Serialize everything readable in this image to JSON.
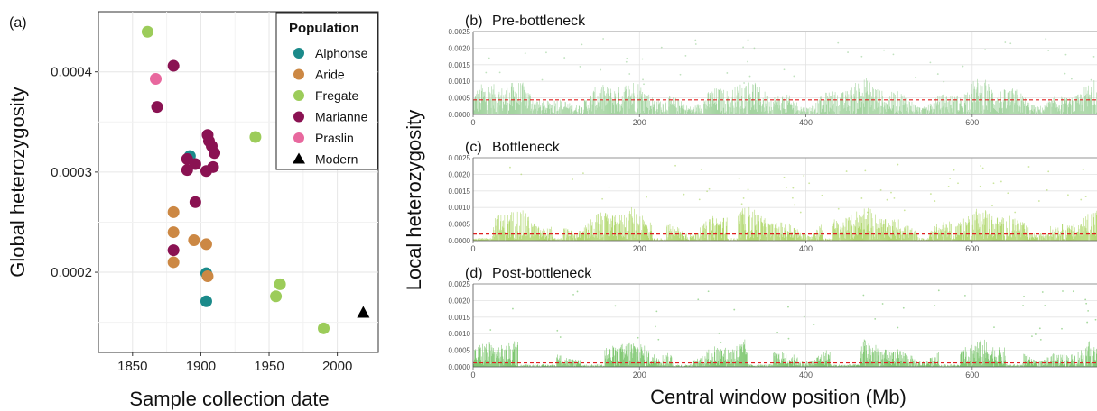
{
  "chart_data": [
    {
      "type": "scatter",
      "panel_label": "(a)",
      "xlabel": "Sample collection date",
      "ylabel": "Global heterozygosity",
      "xlim": [
        1825,
        2030
      ],
      "ylim": [
        0.00012,
        0.00046
      ],
      "xticks": [
        {
          "v": 1850,
          "label": "1850"
        },
        {
          "v": 1900,
          "label": "1900"
        },
        {
          "v": 1950,
          "label": "1950"
        },
        {
          "v": 2000,
          "label": "2000"
        }
      ],
      "yticks": [
        {
          "v": 0.0002,
          "label": "0.0002"
        },
        {
          "v": 0.0003,
          "label": "0.0003"
        },
        {
          "v": 0.0004,
          "label": "0.0004"
        }
      ],
      "grid": true,
      "legend": {
        "title": "Population",
        "position": "top-right",
        "items": [
          {
            "name": "Alphonse",
            "color": "#1b8a8a",
            "shape": "circle"
          },
          {
            "name": "Aride",
            "color": "#cc8844",
            "shape": "circle"
          },
          {
            "name": "Fregate",
            "color": "#9ccc5a",
            "shape": "circle"
          },
          {
            "name": "Marianne",
            "color": "#8a1252",
            "shape": "circle"
          },
          {
            "name": "Praslin",
            "color": "#e8689e",
            "shape": "circle"
          },
          {
            "name": "Modern",
            "color": "#000000",
            "shape": "triangle"
          }
        ]
      },
      "series": [
        {
          "name": "Alphonse",
          "points": [
            [
              1892,
              0.000316
            ],
            [
              1904,
              0.000199
            ],
            [
              1904,
              0.000171
            ]
          ]
        },
        {
          "name": "Aride",
          "points": [
            [
              1880,
              0.00026
            ],
            [
              1880,
              0.00024
            ],
            [
              1880,
              0.00021
            ],
            [
              1895,
              0.000232
            ],
            [
              1904,
              0.000228
            ],
            [
              1905,
              0.000196
            ]
          ]
        },
        {
          "name": "Fregate",
          "points": [
            [
              1861,
              0.00044
            ],
            [
              1940,
              0.000335
            ],
            [
              1958,
              0.000188
            ],
            [
              1955,
              0.000176
            ],
            [
              1990,
              0.000144
            ]
          ]
        },
        {
          "name": "Marianne",
          "points": [
            [
              1880,
              0.000406
            ],
            [
              1868,
              0.000365
            ],
            [
              1890,
              0.000313
            ],
            [
              1896,
              0.000308
            ],
            [
              1890,
              0.000302
            ],
            [
              1905,
              0.000337
            ],
            [
              1906,
              0.000331
            ],
            [
              1908,
              0.000326
            ],
            [
              1910,
              0.000319
            ],
            [
              1909,
              0.000305
            ],
            [
              1904,
              0.000301
            ],
            [
              1896,
              0.00027
            ],
            [
              1880,
              0.000222
            ]
          ]
        },
        {
          "name": "Praslin",
          "points": [
            [
              1867,
              0.000393
            ]
          ]
        },
        {
          "name": "Modern",
          "points": [
            [
              2019,
              0.00016
            ]
          ]
        }
      ]
    },
    {
      "type": "scatter",
      "panel_label": "(b)",
      "title": "Pre-bottleneck",
      "xlim": [
        0,
        750
      ],
      "ylim": [
        0,
        0.0025
      ],
      "xticks": [
        {
          "v": 0,
          "label": "0"
        },
        {
          "v": 200,
          "label": "200"
        },
        {
          "v": 400,
          "label": "400"
        },
        {
          "v": 600,
          "label": "600"
        }
      ],
      "yticks": [
        {
          "v": 0,
          "label": "0.0000"
        },
        {
          "v": 0.0005,
          "label": "0.0005"
        },
        {
          "v": 0.001,
          "label": "0.0010"
        },
        {
          "v": 0.0015,
          "label": "0.0015"
        },
        {
          "v": 0.002,
          "label": "0.0020"
        },
        {
          "v": 0.0025,
          "label": "0.0025"
        }
      ],
      "color": "#98cf94",
      "mean_line": 0.00044,
      "band_upper": 0.0009,
      "low_regions": [],
      "notes": "Dense band of window-level heterozygosity estimates across genome, red dashed line = mean"
    },
    {
      "type": "scatter",
      "panel_label": "(c)",
      "title": "Bottleneck",
      "xlim": [
        0,
        750
      ],
      "ylim": [
        0,
        0.0025
      ],
      "xticks": [
        {
          "v": 0,
          "label": "0"
        },
        {
          "v": 200,
          "label": "200"
        },
        {
          "v": 400,
          "label": "400"
        },
        {
          "v": 600,
          "label": "600"
        }
      ],
      "yticks": [
        {
          "v": 0,
          "label": "0.0000"
        },
        {
          "v": 0.0005,
          "label": "0.0005"
        },
        {
          "v": 0.001,
          "label": "0.0010"
        },
        {
          "v": 0.0015,
          "label": "0.0015"
        },
        {
          "v": 0.002,
          "label": "0.0020"
        },
        {
          "v": 0.0025,
          "label": "0.0025"
        }
      ],
      "color": "#a8d45e",
      "mean_line": 0.0002,
      "band_upper": 0.00085,
      "low_regions": [
        [
          0,
          22
        ],
        [
          96,
          108
        ],
        [
          215,
          232
        ],
        [
          305,
          318
        ],
        [
          420,
          432
        ],
        [
          535,
          548
        ]
      ],
      "notes": "Patchy heterozygosity with runs of homozygosity"
    },
    {
      "type": "scatter",
      "panel_label": "(d)",
      "title": "Post-bottleneck",
      "xlim": [
        0,
        750
      ],
      "ylim": [
        0,
        0.0025
      ],
      "xticks": [
        {
          "v": 0,
          "label": "0"
        },
        {
          "v": 200,
          "label": "200"
        },
        {
          "v": 400,
          "label": "400"
        },
        {
          "v": 600,
          "label": "600"
        }
      ],
      "yticks": [
        {
          "v": 0,
          "label": "0.0000"
        },
        {
          "v": 0.0005,
          "label": "0.0005"
        },
        {
          "v": 0.001,
          "label": "0.0010"
        },
        {
          "v": 0.0015,
          "label": "0.0015"
        },
        {
          "v": 0.002,
          "label": "0.0020"
        },
        {
          "v": 0.0025,
          "label": "0.0025"
        }
      ],
      "color": "#6dbf5e",
      "mean_line": 0.00012,
      "band_upper": 0.0007,
      "low_regions": [
        [
          55,
          100
        ],
        [
          130,
          158
        ],
        [
          240,
          262
        ],
        [
          330,
          360
        ],
        [
          430,
          465
        ],
        [
          560,
          585
        ],
        [
          640,
          660
        ]
      ],
      "notes": "Extensive runs of homozygosity"
    }
  ],
  "shared": {
    "local_ylabel": "Local heterozygosity",
    "local_xlabel": "Central window position (Mb)"
  }
}
